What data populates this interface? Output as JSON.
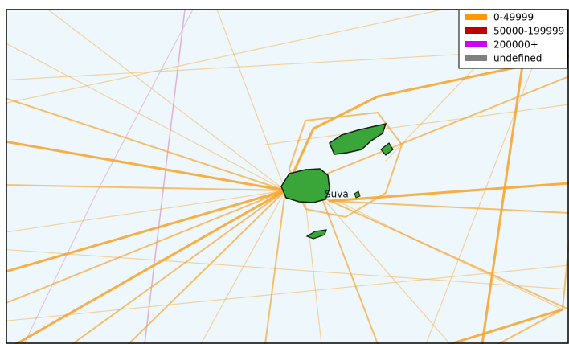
{
  "legend": {
    "items": [
      {
        "label": "0-49999",
        "color": "#ff9900"
      },
      {
        "label": "50000-199999",
        "color": "#c00000"
      },
      {
        "label": "200000+",
        "color": "#cc00ff"
      },
      {
        "label": "undefined",
        "color": "#808080"
      }
    ]
  },
  "place_labels": [
    "Suva"
  ]
}
